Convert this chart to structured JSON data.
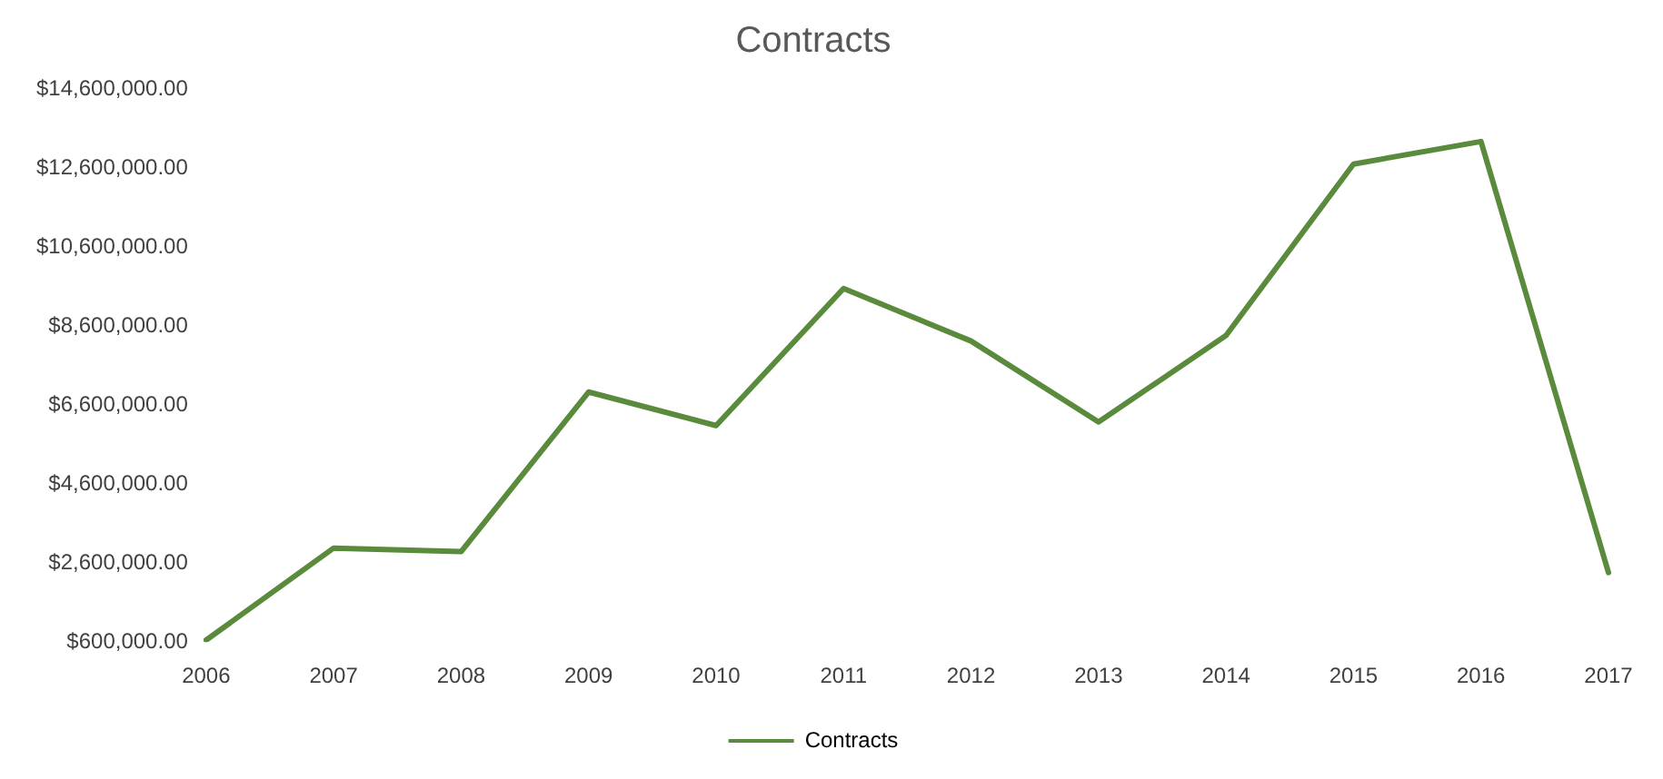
{
  "chart_data": {
    "type": "line",
    "title": "Contracts",
    "categories": [
      "2006",
      "2007",
      "2008",
      "2009",
      "2010",
      "2011",
      "2012",
      "2013",
      "2014",
      "2015",
      "2016",
      "2017"
    ],
    "series": [
      {
        "name": "Contracts",
        "color": "#5a8a3c",
        "values": [
          650000,
          2980000,
          2890000,
          6930000,
          6080000,
          9550000,
          8220000,
          6170000,
          8360000,
          12700000,
          13270000,
          2360000
        ]
      }
    ],
    "ylim": [
      600000,
      14600000
    ],
    "yticks": [
      {
        "value": 600000,
        "label": "$600,000.00"
      },
      {
        "value": 2600000,
        "label": "$2,600,000.00"
      },
      {
        "value": 4600000,
        "label": "$4,600,000.00"
      },
      {
        "value": 6600000,
        "label": "$6,600,000.00"
      },
      {
        "value": 8600000,
        "label": "$8,600,000.00"
      },
      {
        "value": 10600000,
        "label": "$10,600,000.00"
      },
      {
        "value": 12600000,
        "label": "$12,600,000.00"
      },
      {
        "value": 14600000,
        "label": "$14,600,000.00"
      }
    ],
    "grid": false,
    "legend": "bottom",
    "marker": "none",
    "line_style": "solid"
  }
}
